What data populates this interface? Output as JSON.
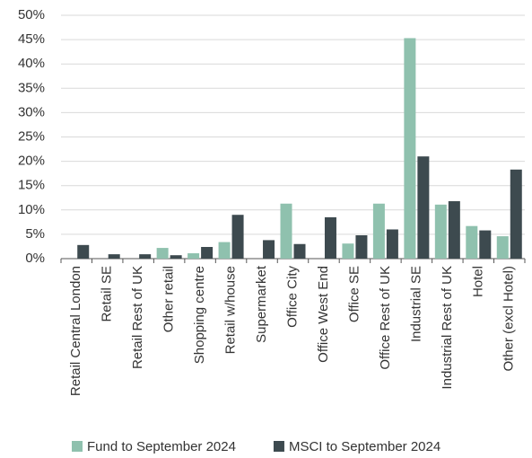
{
  "chart_data": {
    "type": "bar",
    "categories": [
      "Retail Central London",
      "Retail SE",
      "Retail Rest of UK",
      "Other retail",
      "Shopping centre",
      "Retail w/house",
      "Supermarket",
      "Office City",
      "Office West End",
      "Office SE",
      "Office Rest of UK",
      "Industrial SE",
      "Industrial Rest of UK",
      "Hotel",
      "Other (excl Hotel)"
    ],
    "series": [
      {
        "name": "Fund to September 2024",
        "color": "#8fc1ae",
        "values": [
          0,
          0,
          0,
          2.2,
          1.1,
          3.4,
          0,
          11.3,
          0,
          3.1,
          11.3,
          45.3,
          11.1,
          6.7,
          4.6
        ]
      },
      {
        "name": "MSCI to September 2024",
        "color": "#3d4a4f",
        "values": [
          2.8,
          0.9,
          0.9,
          0.7,
          2.4,
          9.0,
          3.8,
          3.0,
          8.5,
          4.8,
          6.0,
          21.0,
          11.8,
          5.8,
          18.3
        ]
      }
    ],
    "ylim": [
      0,
      50
    ],
    "yticks": [
      {
        "value": 0,
        "label": "0%"
      },
      {
        "value": 5,
        "label": "5%"
      },
      {
        "value": 10,
        "label": "10%"
      },
      {
        "value": 15,
        "label": "15%"
      },
      {
        "value": 20,
        "label": "20%"
      },
      {
        "value": 25,
        "label": "25%"
      },
      {
        "value": 30,
        "label": "30%"
      },
      {
        "value": 35,
        "label": "35%"
      },
      {
        "value": 40,
        "label": "40%"
      },
      {
        "value": 45,
        "label": "45%"
      },
      {
        "value": 50,
        "label": "50%"
      }
    ],
    "grid": true
  }
}
